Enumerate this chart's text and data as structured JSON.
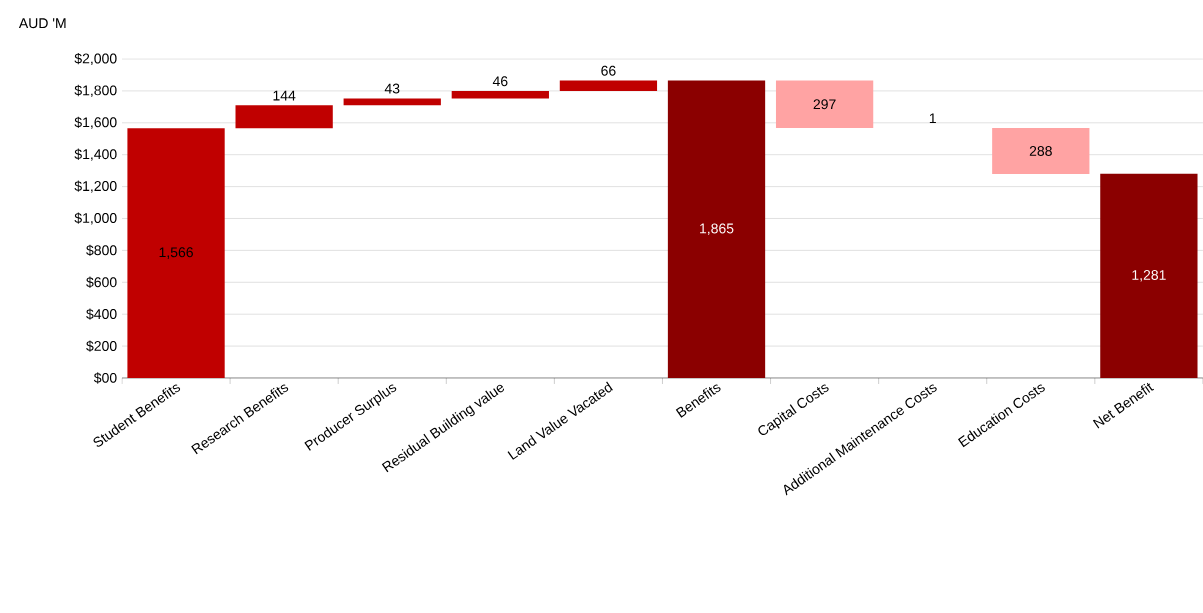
{
  "chart_data": {
    "type": "bar",
    "ylabel": "AUD 'M",
    "categories": [
      "Student Benefits",
      "Research Benefits",
      "Producer Surplus",
      "Residual Building value",
      "Land Value Vacated",
      "Benefits",
      "Capital Costs",
      "Additional Maintenance Costs",
      "Education Costs",
      "Net Benefit"
    ],
    "values": [
      1566,
      144,
      43,
      46,
      66,
      1865,
      -297,
      -1,
      -288,
      1281
    ],
    "base": [
      0,
      1566,
      1710,
      1753,
      1799,
      0,
      1865,
      1568,
      1567,
      0
    ],
    "colors": [
      "#c00000",
      "#c00000",
      "#c00000",
      "#c00000",
      "#c00000",
      "#8b0000",
      "#ffa3a3",
      "#ffa3a3",
      "#ffa3a3",
      "#8b0000"
    ],
    "value_labels": [
      "1,566",
      "144",
      "43",
      "46",
      "66",
      "1,865",
      "297",
      "1",
      "288",
      "1,281"
    ],
    "ylim": [
      0,
      2000
    ],
    "yticks": [
      {
        "value": 0,
        "label": "$00"
      },
      {
        "value": 200,
        "label": "$200"
      },
      {
        "value": 400,
        "label": "$400"
      },
      {
        "value": 600,
        "label": "$600"
      },
      {
        "value": 800,
        "label": "$800"
      },
      {
        "value": 1000,
        "label": "$1,000"
      },
      {
        "value": 1200,
        "label": "$1,200"
      },
      {
        "value": 1400,
        "label": "$1,400"
      },
      {
        "value": 1600,
        "label": "$1,600"
      },
      {
        "value": 1800,
        "label": "$1,800"
      },
      {
        "value": 2000,
        "label": "$2,000"
      }
    ],
    "grid": "y"
  }
}
